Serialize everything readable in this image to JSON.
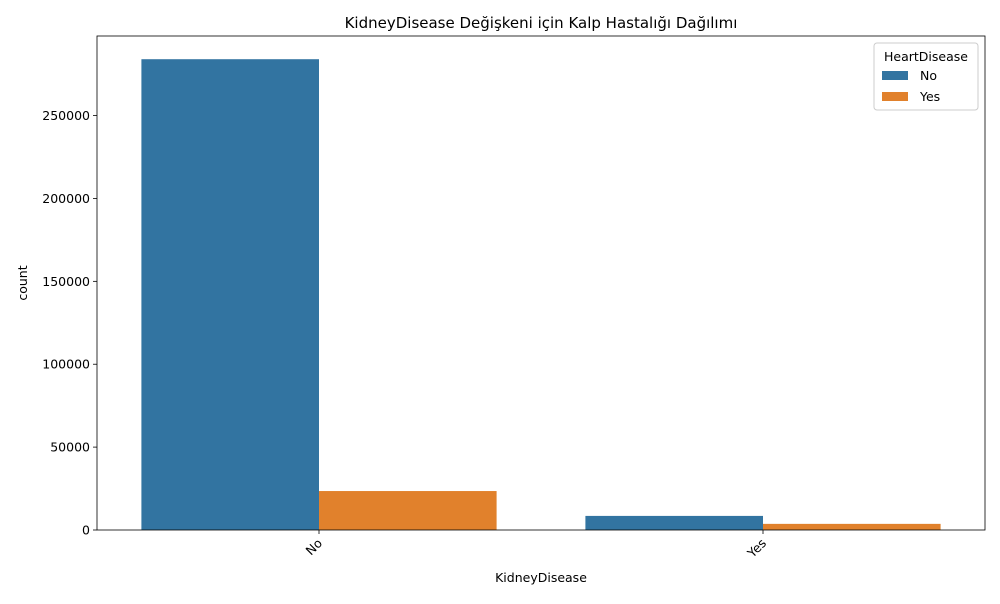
{
  "chart_data": {
    "type": "bar",
    "title": "KidneyDisease Değişkeni için Kalp Hastalığı Dağılımı",
    "xlabel": "KidneyDisease",
    "ylabel": "count",
    "categories": [
      "No",
      "Yes"
    ],
    "series": [
      {
        "name": "No",
        "values": [
          284000,
          8500
        ],
        "color": "#3274a1"
      },
      {
        "name": "Yes",
        "values": [
          23500,
          3700
        ],
        "color": "#e1812c"
      }
    ],
    "ylim": [
      0,
      298000
    ],
    "yticks": [
      0,
      50000,
      100000,
      150000,
      200000,
      250000
    ],
    "grid": false,
    "legend": {
      "title": "HeartDisease",
      "position": "top-right"
    }
  }
}
